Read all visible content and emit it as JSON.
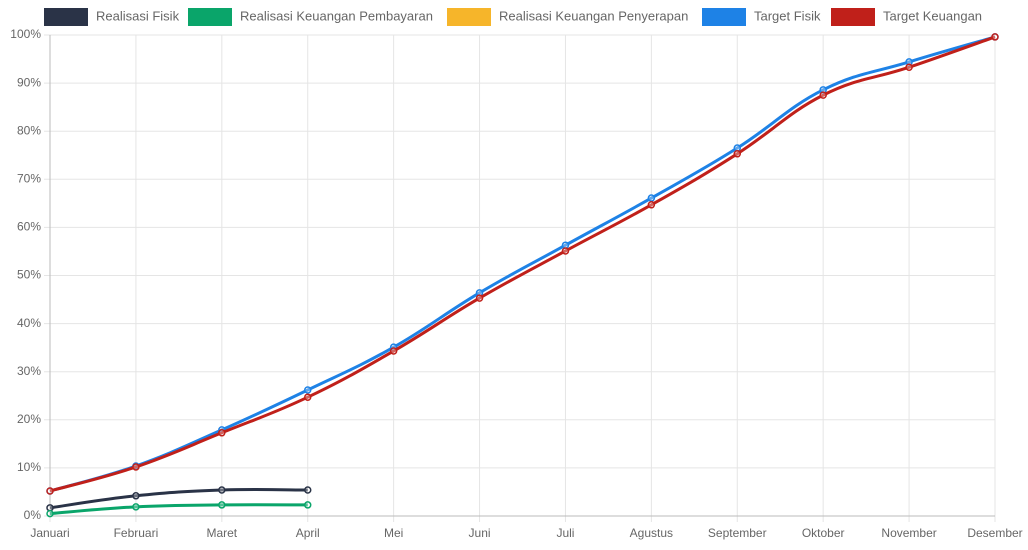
{
  "chart_data": {
    "type": "line",
    "categories": [
      "Januari",
      "Februari",
      "Maret",
      "April",
      "Mei",
      "Juni",
      "Juli",
      "Agustus",
      "September",
      "Oktober",
      "November",
      "Desember"
    ],
    "series": [
      {
        "name": "Realisasi Fisik",
        "color": "#2a3347",
        "values": [
          1.7,
          4.2,
          5.4,
          5.4,
          null,
          null,
          null,
          null,
          null,
          null,
          null,
          null
        ]
      },
      {
        "name": "Realisasi Keuangan Pembayaran",
        "color": "#0aa56a",
        "values": [
          0.5,
          1.9,
          2.3,
          2.3,
          null,
          null,
          null,
          null,
          null,
          null,
          null,
          null
        ]
      },
      {
        "name": "Realisasi Keuangan Penyerapan",
        "color": "#f6b52a",
        "values": [
          null,
          null,
          null,
          null,
          null,
          null,
          null,
          null,
          null,
          null,
          null,
          null
        ]
      },
      {
        "name": "Target Fisik",
        "color": "#1e82e6",
        "values": [
          5.2,
          10.4,
          17.9,
          26.2,
          35.1,
          46.4,
          56.3,
          66.1,
          76.5,
          88.6,
          94.4,
          99.6
        ]
      },
      {
        "name": "Target Keuangan",
        "color": "#c0201a",
        "values": [
          5.2,
          10.2,
          17.3,
          24.7,
          34.3,
          45.3,
          55.1,
          64.7,
          75.3,
          87.5,
          93.3,
          99.6
        ]
      }
    ],
    "ylim": [
      0,
      100
    ],
    "yticks": [
      {
        "value": 0,
        "label": "0%"
      },
      {
        "value": 10,
        "label": "10%"
      },
      {
        "value": 20,
        "label": "20%"
      },
      {
        "value": 30,
        "label": "30%"
      },
      {
        "value": 40,
        "label": "40%"
      },
      {
        "value": 50,
        "label": "50%"
      },
      {
        "value": 60,
        "label": "60%"
      },
      {
        "value": 70,
        "label": "70%"
      },
      {
        "value": 80,
        "label": "80%"
      },
      {
        "value": 90,
        "label": "90%"
      },
      {
        "value": 100,
        "label": "100%"
      }
    ],
    "grid": true,
    "legend": "top"
  }
}
